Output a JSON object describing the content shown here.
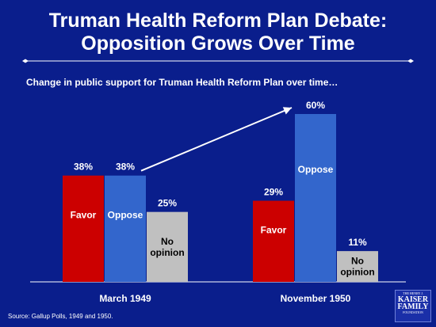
{
  "title_line1": "Truman Health Reform Plan Debate:",
  "title_line2": "Opposition Grows Over Time",
  "colors": {
    "background": "#0a1e8c",
    "favor": "#cc0000",
    "oppose": "#3366cc",
    "no_opinion": "#c0c0c0",
    "text": "#ffffff"
  },
  "chart_data": {
    "type": "bar",
    "title": "Change in public support for Truman Health Reform Plan over time…",
    "categories": [
      "March 1949",
      "November 1950"
    ],
    "series": [
      {
        "name": "Favor",
        "values": [
          38,
          29
        ]
      },
      {
        "name": "Oppose",
        "values": [
          38,
          60
        ]
      },
      {
        "name": "No opinion",
        "values": [
          25,
          11
        ]
      }
    ],
    "value_labels": [
      [
        "38%",
        "29%"
      ],
      [
        "38%",
        "60%"
      ],
      [
        "25%",
        "11%"
      ]
    ],
    "bar_labels": [
      [
        "Favor",
        "Favor"
      ],
      [
        "Oppose",
        "Oppose"
      ],
      [
        "No opinion",
        "No opinion"
      ]
    ],
    "ylim": [
      0,
      60
    ],
    "grid": false,
    "legend": "none",
    "annotation": "arrow from March 1949 Oppose to November 1950 Oppose"
  },
  "source": "Source: Gallup Polls, 1949 and 1950.",
  "logo": {
    "top": "THE HENRY J.",
    "line1": "KAISER",
    "line2": "FAMILY",
    "bottom": "FOUNDATION"
  }
}
